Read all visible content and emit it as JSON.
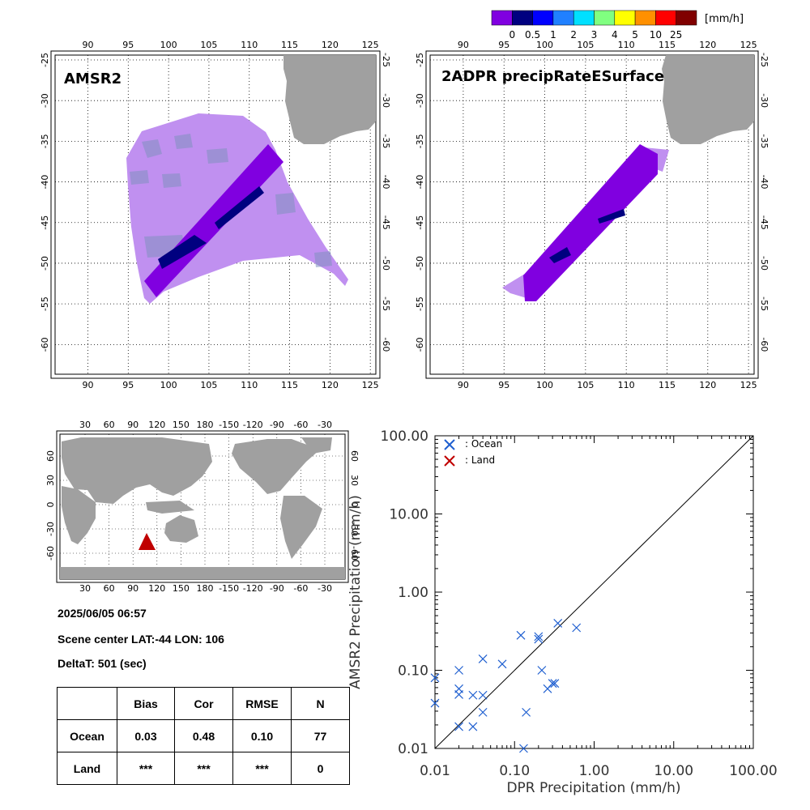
{
  "colorbar": {
    "colors": [
      "#8000e0",
      "#000080",
      "#0000ff",
      "#2080ff",
      "#00e0ff",
      "#80ff80",
      "#ffff00",
      "#ff9000",
      "#ff0000",
      "#800000"
    ],
    "labels": [
      "0",
      "0.5",
      "1",
      "2",
      "3",
      "4",
      "5",
      "10",
      "25"
    ],
    "unit": "[mm/h]"
  },
  "colors": {
    "land": "#a0a0a0",
    "light_rain": "#c090f0",
    "moderate_rain": "#8000e0",
    "heavy_rain": "#000080",
    "cloud_patch": "#8090c0",
    "ocean_marker": "#1f5fd0",
    "land_marker": "#c00000"
  },
  "map_amsr2": {
    "title": "AMSR2",
    "lon_ticks": [
      "90",
      "95",
      "100",
      "105",
      "110",
      "115",
      "120",
      "125"
    ],
    "lat_ticks": [
      "-25",
      "-30",
      "-35",
      "-40",
      "-45",
      "-50",
      "-55",
      "-60"
    ]
  },
  "map_dpr": {
    "title": "2ADPR precipRateESurface",
    "lon_ticks": [
      "90",
      "95",
      "100",
      "105",
      "110",
      "115",
      "120",
      "125"
    ],
    "lat_ticks": [
      "-25",
      "-30",
      "-35",
      "-40",
      "-45",
      "-50",
      "-55",
      "-60"
    ]
  },
  "world_map": {
    "lon_ticks": [
      "30",
      "60",
      "90",
      "120",
      "150",
      "180",
      "-150",
      "-120",
      "-90",
      "-60",
      "-30"
    ],
    "lat_ticks": [
      "60",
      "30",
      "0",
      "-30",
      "-60"
    ],
    "marker": "red-triangle"
  },
  "info": {
    "datetime": "2025/06/05 06:57",
    "scene_center": "Scene center LAT:-44   LON: 106",
    "delta_t": "DeltaT:  501 (sec)"
  },
  "stats_table": {
    "headers": [
      "",
      "Bias",
      "Cor",
      "RMSE",
      "N"
    ],
    "rows": [
      [
        "Ocean",
        "0.03",
        "0.48",
        "0.10",
        "77"
      ],
      [
        "Land",
        "***",
        "***",
        "***",
        "0"
      ]
    ]
  },
  "chart_data": {
    "type": "scatter",
    "xlabel": "DPR Precipitation (mm/h)",
    "ylabel": "AMSR2 Precipitation (mm/h)",
    "xlim": [
      0.01,
      100
    ],
    "ylim": [
      0.01,
      100
    ],
    "log_x": true,
    "log_y": true,
    "tick_labels": [
      "0.01",
      "0.10",
      "1.00",
      "10.00",
      "100.00"
    ],
    "one_to_one_line": true,
    "legend_placement": "top-left",
    "series": [
      {
        "name": ": Ocean",
        "marker": "x",
        "points": [
          [
            0.01,
            0.08
          ],
          [
            0.01,
            0.038
          ],
          [
            0.02,
            0.1
          ],
          [
            0.02,
            0.058
          ],
          [
            0.02,
            0.049
          ],
          [
            0.02,
            0.019
          ],
          [
            0.03,
            0.048
          ],
          [
            0.03,
            0.019
          ],
          [
            0.04,
            0.14
          ],
          [
            0.04,
            0.048
          ],
          [
            0.04,
            0.029
          ],
          [
            0.07,
            0.12
          ],
          [
            0.12,
            0.28
          ],
          [
            0.13,
            0.01
          ],
          [
            0.14,
            0.029
          ],
          [
            0.2,
            0.27
          ],
          [
            0.2,
            0.25
          ],
          [
            0.22,
            0.1
          ],
          [
            0.26,
            0.058
          ],
          [
            0.3,
            0.068
          ],
          [
            0.32,
            0.068
          ],
          [
            0.35,
            0.4
          ],
          [
            0.6,
            0.35
          ]
        ]
      },
      {
        "name": ": Land",
        "marker": "x",
        "points": []
      }
    ]
  }
}
